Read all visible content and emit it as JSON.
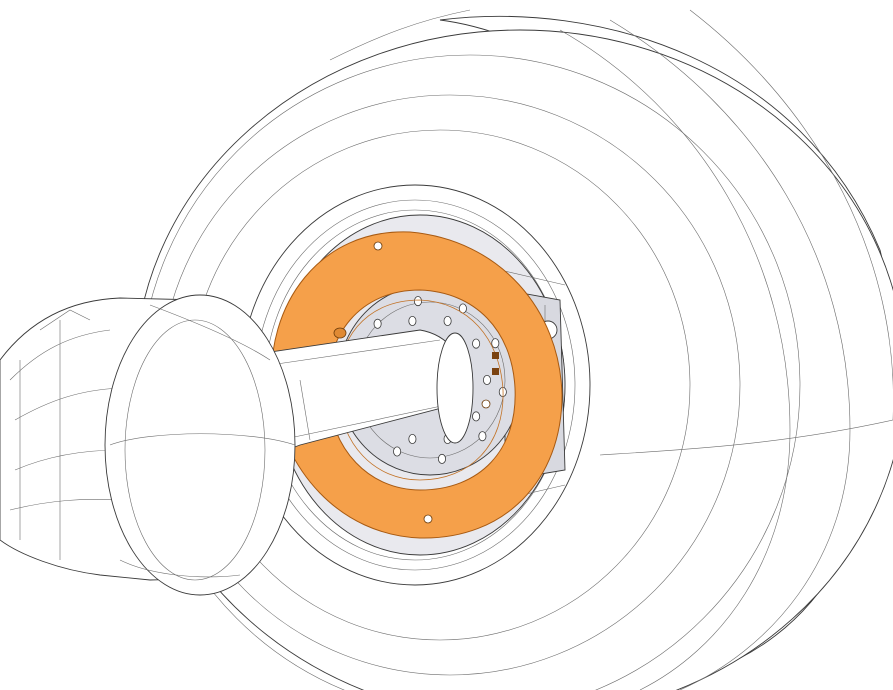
{
  "drawing": {
    "subject": "wheel-hub-assembly",
    "colors": {
      "background": "#ffffff",
      "outline": "#3a3a3a",
      "highlight_ring": "#f5a04a",
      "highlight_ring_edge": "#a85a12",
      "hub_plate": "#dcdde4",
      "axle_fill": "#ffffff"
    },
    "highlighted_part": "seal-ring",
    "counts": {
      "ring_holes": 3,
      "hub_bolts": 20
    }
  }
}
